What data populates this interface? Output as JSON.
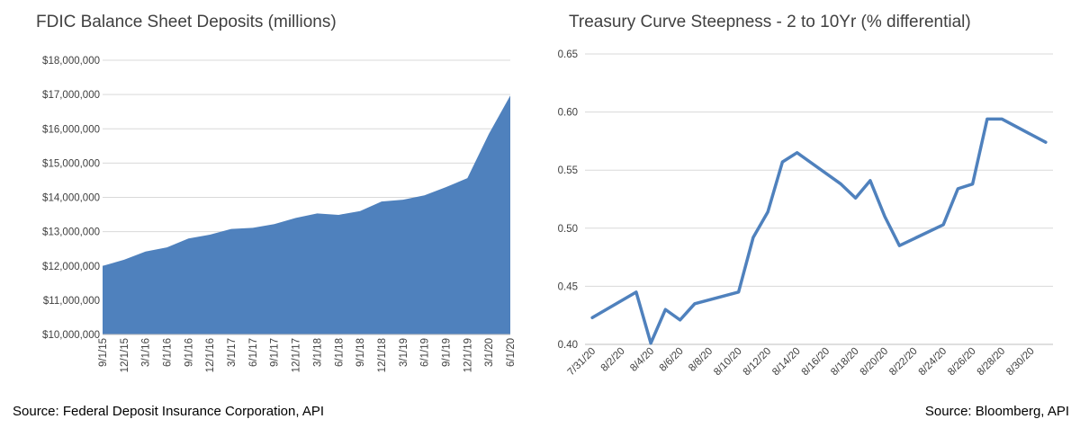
{
  "chart_data": [
    {
      "type": "area",
      "title": "FDIC Balance Sheet Deposits (millions)",
      "source": "Source: Federal Deposit Insurance Corporation, API",
      "color": "#4f81bd",
      "ylim": [
        10000000,
        18000000
      ],
      "yticks": [
        "$10,000,000",
        "$11,000,000",
        "$12,000,000",
        "$13,000,000",
        "$14,000,000",
        "$15,000,000",
        "$16,000,000",
        "$17,000,000",
        "$18,000,000"
      ],
      "x": [
        "9/1/15",
        "12/1/15",
        "3/1/16",
        "6/1/16",
        "9/1/16",
        "12/1/16",
        "3/1/17",
        "6/1/17",
        "9/1/17",
        "12/1/17",
        "3/1/18",
        "6/1/18",
        "9/1/18",
        "12/1/18",
        "3/1/19",
        "6/1/19",
        "9/1/19",
        "12/1/19",
        "3/1/20",
        "6/1/20"
      ],
      "values": [
        12000000,
        12180000,
        12420000,
        12540000,
        12800000,
        12910000,
        13080000,
        13110000,
        13220000,
        13400000,
        13530000,
        13490000,
        13600000,
        13880000,
        13930000,
        14060000,
        14300000,
        14560000,
        15850000,
        16970000
      ],
      "grid": true
    },
    {
      "type": "line",
      "title": "Treasury Curve Steepness - 2 to 10Yr (% differential)",
      "source": "Source: Bloomberg, API",
      "color": "#4f81bd",
      "ylim": [
        0.4,
        0.65
      ],
      "yticks": [
        "0.40",
        "0.45",
        "0.50",
        "0.55",
        "0.60",
        "0.65"
      ],
      "xticks": [
        "7/31/20",
        "8/2/20",
        "8/4/20",
        "8/6/20",
        "8/8/20",
        "8/10/20",
        "8/12/20",
        "8/14/20",
        "8/16/20",
        "8/18/20",
        "8/20/20",
        "8/22/20",
        "8/24/20",
        "8/26/20",
        "8/28/20",
        "8/30/20"
      ],
      "x": [
        "7/31/20",
        "8/3/20",
        "8/4/20",
        "8/5/20",
        "8/6/20",
        "8/7/20",
        "8/10/20",
        "8/11/20",
        "8/12/20",
        "8/13/20",
        "8/14/20",
        "8/17/20",
        "8/18/20",
        "8/19/20",
        "8/20/20",
        "8/21/20",
        "8/24/20",
        "8/25/20",
        "8/26/20",
        "8/27/20",
        "8/28/20",
        "8/31/20"
      ],
      "values": [
        0.423,
        0.445,
        0.401,
        0.43,
        0.421,
        0.435,
        0.445,
        0.492,
        0.514,
        0.557,
        0.565,
        0.538,
        0.526,
        0.541,
        0.51,
        0.485,
        0.503,
        0.534,
        0.538,
        0.594,
        0.594,
        0.574
      ],
      "grid": true
    }
  ]
}
